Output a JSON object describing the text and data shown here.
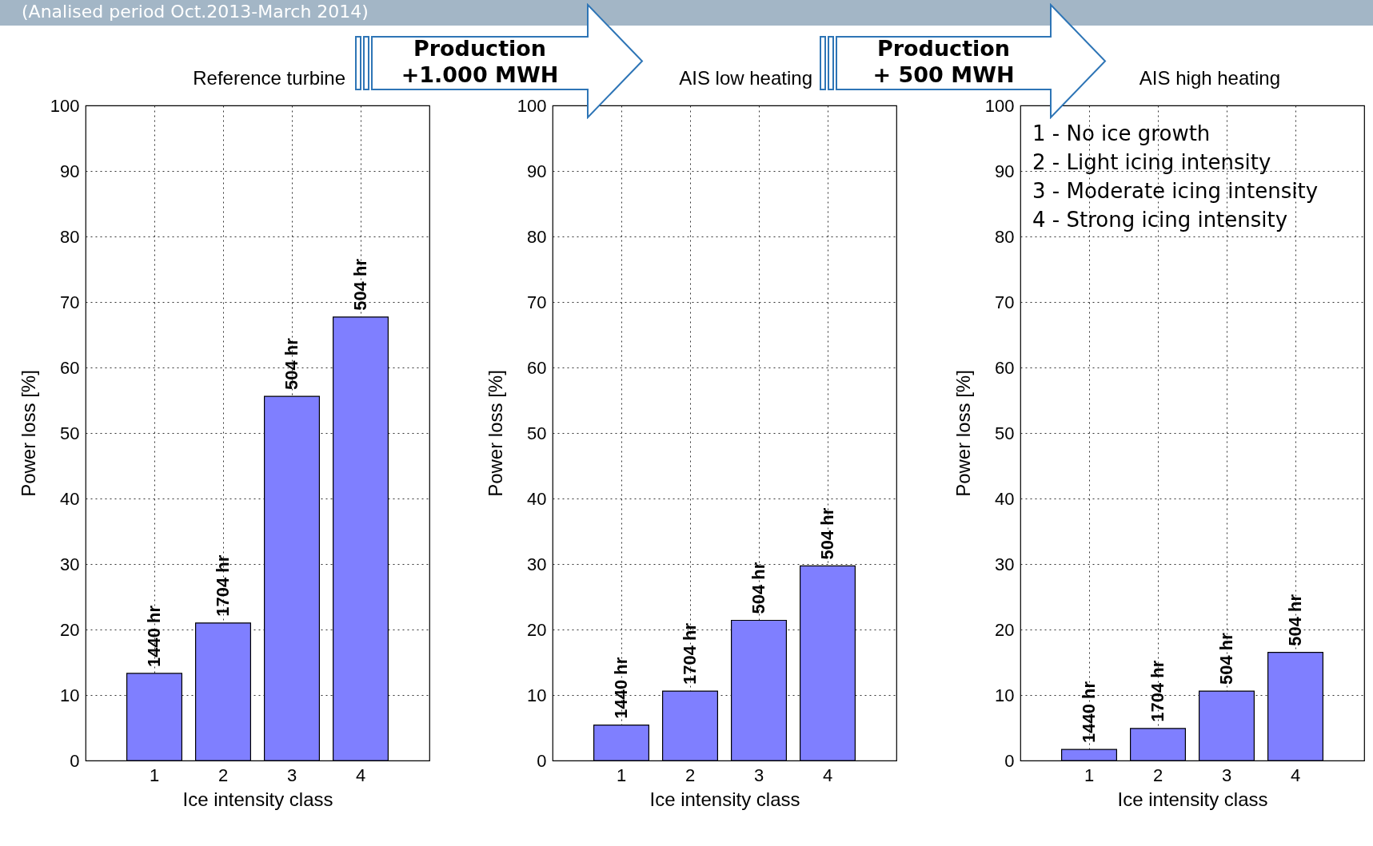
{
  "chart_data": [
    {
      "type": "bar",
      "title": "Reference turbine",
      "categories": [
        "1",
        "2",
        "3",
        "4"
      ],
      "values": [
        13.3,
        21.0,
        55.6,
        67.7
      ],
      "color": "#7f7fff",
      "xlabel": "Ice intensity class",
      "ylabel": "Power loss [%]",
      "ylim": [
        0,
        100
      ],
      "yticks": [
        0,
        10,
        20,
        30,
        40,
        50,
        60,
        70,
        80,
        90,
        100
      ],
      "grid": true,
      "annotations": [
        "(Analised period Oct.2013-March 2014)",
        "Production\n+1.000 MWH",
        {
          "text": "1440 hr",
          "x": "1",
          "y": 13.3
        },
        {
          "text": "1704 hr",
          "x": "2",
          "y": 21.0
        },
        {
          "text": "504 hr",
          "x": "3",
          "y": 55.6
        },
        {
          "text": "504 hr",
          "x": "4",
          "y": 67.7
        }
      ]
    },
    {
      "type": "bar",
      "title": "AIS low heating",
      "categories": [
        "1",
        "2",
        "3",
        "4"
      ],
      "values": [
        5.4,
        10.6,
        21.4,
        29.7
      ],
      "color": "#7f7fff",
      "xlabel": "Ice intensity class",
      "ylabel": "Power loss [%]",
      "ylim": [
        0,
        100
      ],
      "yticks": [
        0,
        10,
        20,
        30,
        40,
        50,
        60,
        70,
        80,
        90,
        100
      ],
      "grid": true,
      "annotations": [
        "Production\n+ 500 MWH",
        {
          "text": "1440 hr",
          "x": "1",
          "y": 5.4
        },
        {
          "text": "1704 hr",
          "x": "2",
          "y": 10.6
        },
        {
          "text": "504 hr",
          "x": "3",
          "y": 21.4
        },
        {
          "text": "504 hr",
          "x": "4",
          "y": 29.7
        }
      ]
    },
    {
      "type": "bar",
      "title": "AIS high heating",
      "categories": [
        "1",
        "2",
        "3",
        "4"
      ],
      "values": [
        1.7,
        4.9,
        10.6,
        16.5
      ],
      "color": "#7f7fff",
      "xlabel": "Ice intensity class",
      "ylabel": "Power loss [%]",
      "ylim": [
        0,
        100
      ],
      "yticks": [
        0,
        10,
        20,
        30,
        40,
        50,
        60,
        70,
        80,
        90,
        100
      ],
      "grid": true,
      "annotations": [
        "1 - No ice growth",
        "2 - Light icing intensity",
        "3 - Moderate icing intensity",
        "4 - Strong icing intensity",
        {
          "text": "1440 hr",
          "x": "1",
          "y": 1.7
        },
        {
          "text": "1704 hr",
          "x": "2",
          "y": 4.9
        },
        {
          "text": "504 hr",
          "x": "3",
          "y": 10.6
        },
        {
          "text": "504 hr",
          "x": "4",
          "y": 16.5
        }
      ]
    }
  ]
}
